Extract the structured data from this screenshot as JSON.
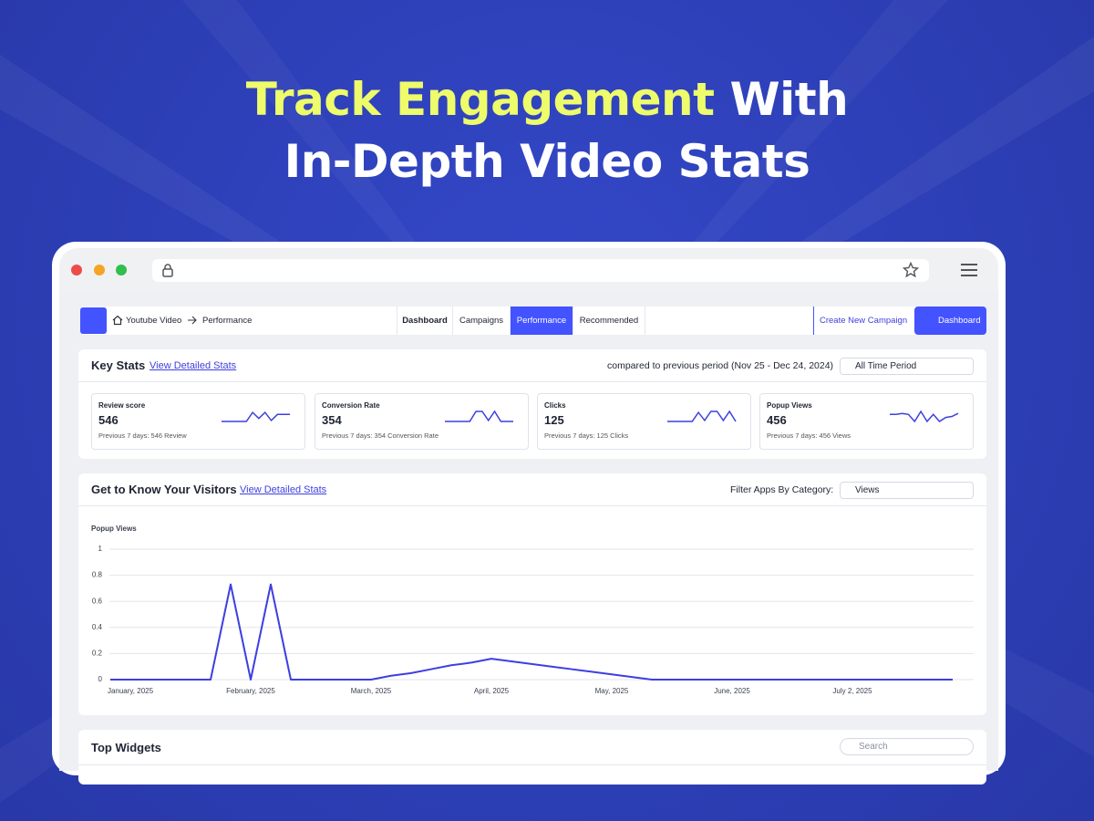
{
  "headline": {
    "highlight": "Track Engagement",
    "rest": "With",
    "line2": "In-Depth Video Stats"
  },
  "nav": {
    "breadcrumb": [
      "Youtube Video",
      "Performance"
    ],
    "tabs": [
      "Dashboard",
      "Campaigns",
      "Performance",
      "Recommended"
    ],
    "active_tab": 2,
    "create_button": "Create New Campaign",
    "dashboard_button": "Dashboard"
  },
  "key_stats": {
    "title": "Key Stats",
    "link": "View Detailed Stats",
    "compare": "compared to previous period (Nov 25 - Dec 24, 2024)",
    "period": "All Time Period",
    "cards": [
      {
        "label": "Review score",
        "value": 546,
        "note": "Previous 7 days: 546 Review",
        "trend": [
          0,
          0,
          0,
          0,
          0,
          0.9,
          0.3,
          0.9,
          0.1,
          0.7,
          0.7,
          0.7
        ]
      },
      {
        "label": "Conversion Rate",
        "value": 354,
        "note": "Previous 7 days: 354 Conversion Rate",
        "trend": [
          0,
          0,
          0,
          0,
          0,
          1,
          1,
          0.1,
          1,
          0,
          0,
          0
        ]
      },
      {
        "label": "Clicks",
        "value": 125,
        "note": "Previous 7 days: 125 Clicks",
        "trend": [
          0,
          0,
          0,
          0,
          0,
          0.9,
          0.1,
          1,
          1,
          0.1,
          1,
          0
        ]
      },
      {
        "label": "Popup Views",
        "value": 456,
        "note": "Previous 7 days: 456 Views",
        "trend": [
          0.7,
          0.7,
          0.8,
          0.7,
          0,
          1,
          0,
          0.7,
          0,
          0.4,
          0.5,
          0.8
        ]
      }
    ]
  },
  "visitors": {
    "title": "Get to Know Your Visitors",
    "link": "View Detailed Stats",
    "filter_label": "Filter Apps By Category:",
    "filter_value": "Views",
    "chart_data": {
      "type": "line",
      "ylabel": "Popup Views",
      "categories": [
        null,
        "January, 2025",
        null,
        null,
        null,
        null,
        null,
        "February, 2025",
        null,
        null,
        null,
        null,
        null,
        "March, 2025",
        null,
        null,
        null,
        null,
        null,
        "April, 2025",
        null,
        null,
        null,
        null,
        null,
        "May, 2025",
        null,
        null,
        null,
        null,
        null,
        "June, 2025",
        null,
        null,
        null,
        null,
        null,
        "July 2, 2025",
        null,
        null,
        null,
        null,
        null
      ],
      "series": [
        {
          "name": "Popup Views",
          "color": "#3d3fe0",
          "values": [
            0,
            0,
            0,
            0,
            0,
            0,
            0.73,
            0,
            0.73,
            0,
            0,
            0,
            0,
            0,
            0.03,
            0.05,
            0.08,
            0.11,
            0.13,
            0.16,
            0.14,
            0.12,
            0.1,
            0.08,
            0.06,
            0.04,
            0.02,
            0,
            0,
            0,
            0,
            0,
            0,
            0,
            0,
            0,
            0,
            0,
            0,
            0,
            0,
            0,
            0
          ]
        }
      ],
      "ylim": [
        0,
        1
      ],
      "yticks": [
        0,
        0.2,
        0.4,
        0.6,
        0.8,
        1
      ],
      "grid": true
    }
  },
  "top_widgets": {
    "title": "Top Widgets",
    "search": "Search"
  }
}
